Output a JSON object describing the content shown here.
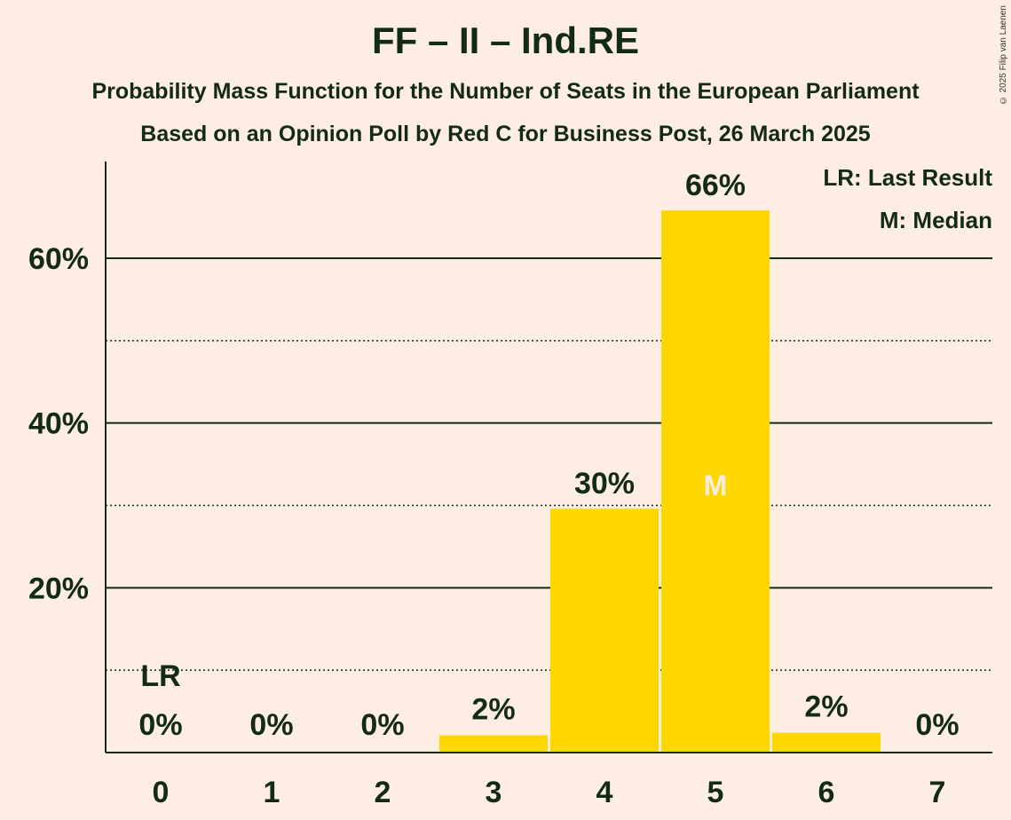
{
  "chart_data": {
    "type": "bar",
    "title": "FF – II – Ind.RE",
    "subtitle": "Probability Mass Function for the Number of Seats in the European Parliament",
    "subtitle2": "Based on an Opinion Poll by Red C for Business Post, 26 March 2025",
    "categories": [
      "0",
      "1",
      "2",
      "3",
      "4",
      "5",
      "6",
      "7"
    ],
    "values": [
      0,
      0,
      0,
      2.1,
      29.6,
      65.8,
      2.4,
      0
    ],
    "value_labels": [
      "0%",
      "0%",
      "0%",
      "2%",
      "30%",
      "66%",
      "2%",
      "0%"
    ],
    "ylim": [
      0,
      70
    ],
    "y_ticks": [
      {
        "value": 20,
        "label": "20%"
      },
      {
        "value": 40,
        "label": "40%"
      },
      {
        "value": 60,
        "label": "60%"
      }
    ],
    "minor_gridlines": [
      10,
      30,
      50
    ],
    "last_result_index": 0,
    "last_result_marker": "LR",
    "median_index": 5,
    "median_marker": "M",
    "legend": [
      "LR: Last Result",
      "M: Median"
    ],
    "legend_placement": "top-right",
    "bar_color": "#FFD700",
    "background_color": "#FDEDE3",
    "text_color": "#132A13"
  },
  "copyright": "© 2025 Filip van Laenen"
}
